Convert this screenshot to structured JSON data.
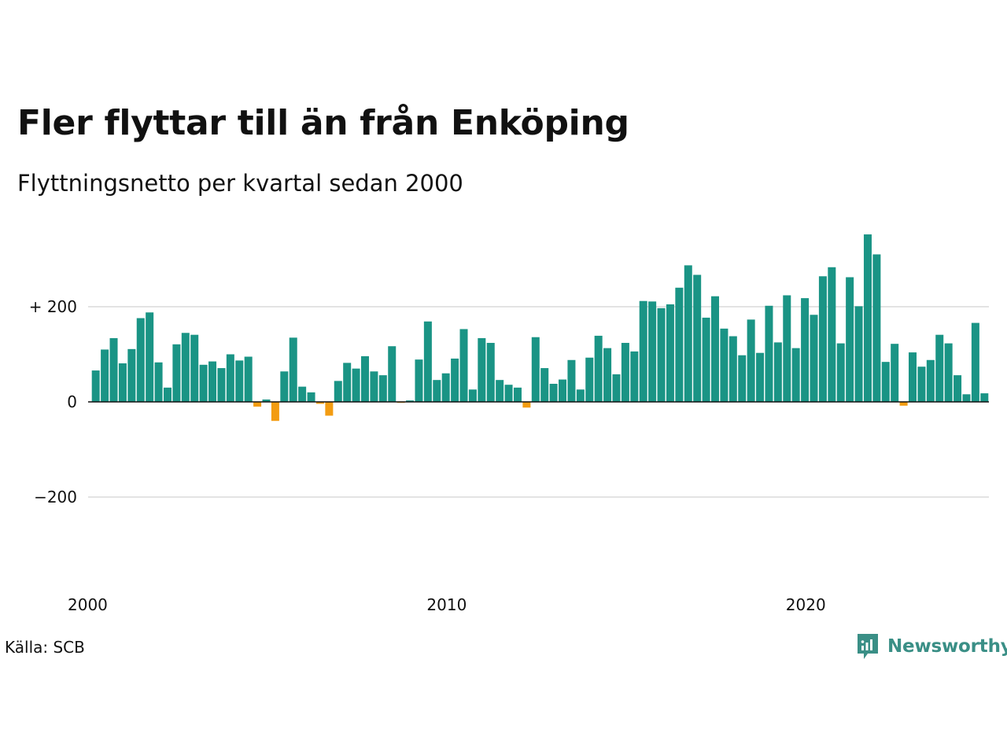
{
  "title": "Fler flyttar till än från Enköping",
  "subtitle": "Flyttningsnetto per kvartal sedan 2000",
  "source": "Källa: SCB",
  "brand": {
    "name": "Newsworthy",
    "icon": "newsworthy-logo-icon"
  },
  "colors": {
    "positive": "#1a9485",
    "negative": "#f39c12",
    "grid": "#e3e3e3",
    "zero": "#111111",
    "brand": "#3a8f86"
  },
  "chart_data": {
    "type": "bar",
    "title": "Fler flyttar till än från Enköping",
    "subtitle": "Flyttningsnetto per kvartal sedan 2000",
    "xlabel": "",
    "ylabel": "",
    "x_ticks": [
      {
        "label": "2000",
        "year": 2000
      },
      {
        "label": "2010",
        "year": 2010
      },
      {
        "label": "2020",
        "year": 2020
      }
    ],
    "y_ticks": [
      {
        "label": "+ 200",
        "value": 200
      },
      {
        "label": "0",
        "value": 0
      },
      {
        "label": "−200",
        "value": -200
      }
    ],
    "ylim": [
      -300,
      350
    ],
    "grid": true,
    "start_quarter": "2000 Q1",
    "categories": [
      "2000 Q1",
      "2000 Q2",
      "2000 Q3",
      "2000 Q4",
      "2001 Q1",
      "2001 Q2",
      "2001 Q3",
      "2001 Q4",
      "2002 Q1",
      "2002 Q2",
      "2002 Q3",
      "2002 Q4",
      "2003 Q1",
      "2003 Q2",
      "2003 Q3",
      "2003 Q4",
      "2004 Q1",
      "2004 Q2",
      "2004 Q3",
      "2004 Q4",
      "2005 Q1",
      "2005 Q2",
      "2005 Q3",
      "2005 Q4",
      "2006 Q1",
      "2006 Q2",
      "2006 Q3",
      "2006 Q4",
      "2007 Q1",
      "2007 Q2",
      "2007 Q3",
      "2007 Q4",
      "2008 Q1",
      "2008 Q2",
      "2008 Q3",
      "2008 Q4",
      "2009 Q1",
      "2009 Q2",
      "2009 Q3",
      "2009 Q4",
      "2010 Q1",
      "2010 Q2",
      "2010 Q3",
      "2010 Q4",
      "2011 Q1",
      "2011 Q2",
      "2011 Q3",
      "2011 Q4",
      "2012 Q1",
      "2012 Q2",
      "2012 Q3",
      "2012 Q4",
      "2013 Q1",
      "2013 Q2",
      "2013 Q3",
      "2013 Q4",
      "2014 Q1",
      "2014 Q2",
      "2014 Q3",
      "2014 Q4",
      "2015 Q1",
      "2015 Q2",
      "2015 Q3",
      "2015 Q4",
      "2016 Q1",
      "2016 Q2",
      "2016 Q3",
      "2016 Q4",
      "2017 Q1",
      "2017 Q2",
      "2017 Q3",
      "2017 Q4",
      "2018 Q1",
      "2018 Q2",
      "2018 Q3",
      "2018 Q4",
      "2019 Q1",
      "2019 Q2",
      "2019 Q3",
      "2019 Q4",
      "2020 Q1",
      "2020 Q2",
      "2020 Q3",
      "2020 Q4",
      "2021 Q1",
      "2021 Q2",
      "2021 Q3",
      "2021 Q4",
      "2022 Q1",
      "2022 Q2",
      "2022 Q3",
      "2022 Q4",
      "2023 Q1",
      "2023 Q2",
      "2023 Q3",
      "2023 Q4",
      "2024 Q1",
      "2024 Q2",
      "2024 Q3",
      "2024 Q4"
    ],
    "values": [
      66,
      110,
      134,
      81,
      111,
      176,
      188,
      83,
      30,
      121,
      145,
      141,
      78,
      85,
      71,
      100,
      87,
      95,
      -10,
      5,
      -40,
      64,
      135,
      32,
      20,
      -4,
      -29,
      44,
      82,
      70,
      96,
      64,
      56,
      117,
      -2,
      3,
      89,
      169,
      46,
      60,
      91,
      153,
      26,
      134,
      124,
      46,
      36,
      30,
      -12,
      136,
      71,
      38,
      47,
      88,
      26,
      93,
      139,
      113,
      58,
      124,
      106,
      212,
      211,
      197,
      205,
      240,
      287,
      267,
      177,
      222,
      154,
      138,
      98,
      173,
      103,
      202,
      125,
      224,
      113,
      218,
      183,
      264,
      283,
      123,
      262,
      201,
      352,
      310,
      84,
      122,
      -8,
      104,
      74,
      88,
      141,
      123,
      56,
      16,
      166,
      18
    ]
  }
}
